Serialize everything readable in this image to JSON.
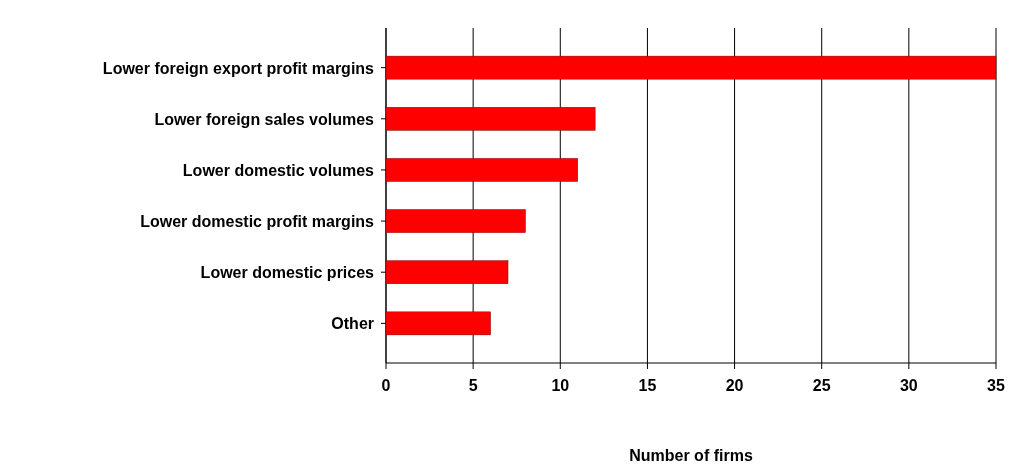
{
  "chart_data": {
    "type": "bar",
    "orientation": "horizontal",
    "xlabel": "Number of firms",
    "categories": [
      "Lower foreign export profit margins",
      "Lower foreign sales volumes",
      "Lower domestic volumes",
      "Lower domestic profit margins",
      "Lower domestic prices",
      "Other"
    ],
    "values": [
      35,
      12,
      11,
      8,
      7,
      6
    ],
    "color": "#ff0000",
    "xlim": [
      0,
      35
    ],
    "xticks": [
      0,
      5,
      10,
      15,
      20,
      25,
      30,
      35
    ],
    "grid": "x"
  }
}
